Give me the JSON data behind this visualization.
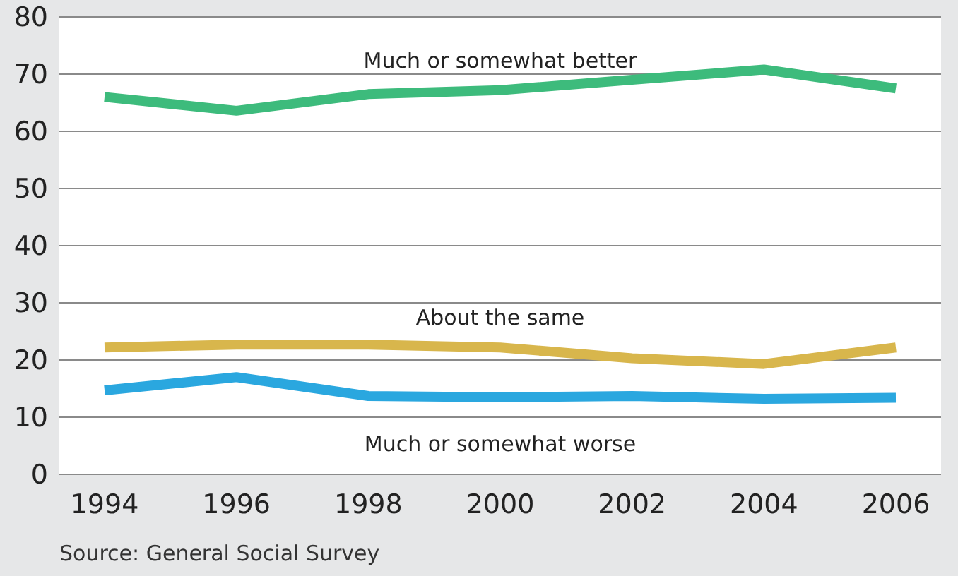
{
  "chart_data": {
    "type": "line",
    "categories": [
      "1994",
      "1996",
      "1998",
      "2000",
      "2002",
      "2004",
      "2006"
    ],
    "series": [
      {
        "name": "Much or somewhat better",
        "color": "#3dbb7c",
        "values": [
          66,
          63.6,
          66.5,
          67.2,
          69,
          70.8,
          67.5
        ]
      },
      {
        "name": "About the same",
        "color": "#d8b64c",
        "values": [
          22.2,
          22.7,
          22.7,
          22.2,
          20.3,
          19.3,
          22.2
        ]
      },
      {
        "name": "Much or somewhat worse",
        "color": "#2aa7df",
        "values": [
          14.7,
          17,
          13.7,
          13.5,
          13.7,
          13.2,
          13.4
        ]
      }
    ],
    "ylim": [
      0,
      80
    ],
    "yticks": [
      0,
      10,
      20,
      30,
      40,
      50,
      60,
      70,
      80
    ],
    "grid": "y",
    "marker": "none",
    "line_style": "solid",
    "annotations": [
      "Source: General Social Survey"
    ]
  }
}
